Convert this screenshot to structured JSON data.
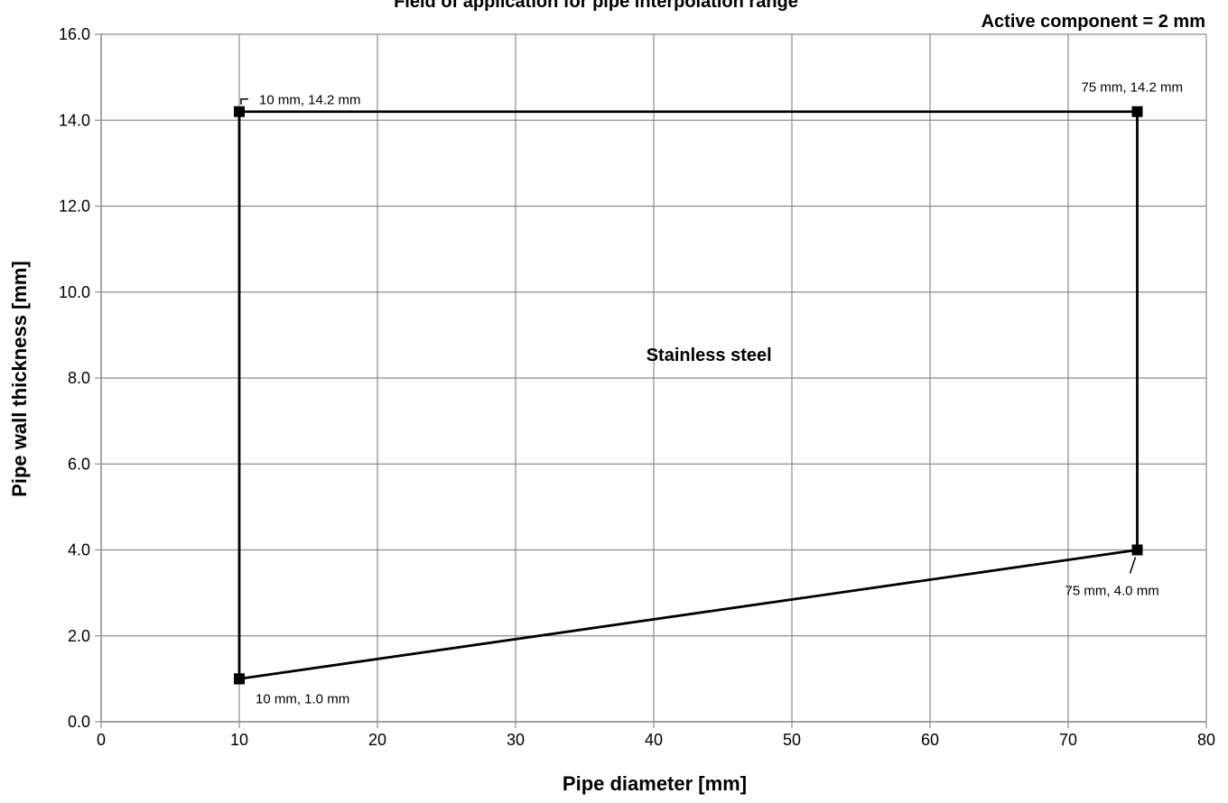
{
  "chart_data": {
    "type": "line",
    "title": "Field of application for pipe interpolation range",
    "subtitle": "Active component = 2 mm",
    "xlabel": "Pipe diameter [mm]",
    "ylabel": "Pipe wall thickness [mm]",
    "xlim": [
      0,
      80
    ],
    "ylim": [
      0,
      16
    ],
    "x_ticks": [
      "0",
      "10",
      "20",
      "30",
      "40",
      "50",
      "60",
      "70",
      "80"
    ],
    "y_ticks": [
      "0.0",
      "2.0",
      "4.0",
      "6.0",
      "8.0",
      "10.0",
      "12.0",
      "14.0",
      "16.0"
    ],
    "grid": true,
    "series": [
      {
        "points": [
          {
            "x": 10,
            "y": 1.0
          },
          {
            "x": 10,
            "y": 14.2
          },
          {
            "x": 75,
            "y": 14.2
          },
          {
            "x": 75,
            "y": 4.0
          },
          {
            "x": 10,
            "y": 1.0
          }
        ],
        "color": "#000000"
      }
    ],
    "point_labels": [
      {
        "x": 10,
        "y": 14.2,
        "text": "10 mm, 14.2 mm"
      },
      {
        "x": 75,
        "y": 14.2,
        "text": "75 mm, 14.2 mm"
      },
      {
        "x": 75,
        "y": 4.0,
        "text": "75 mm, 4.0 mm"
      },
      {
        "x": 10,
        "y": 1.0,
        "text": "10 mm, 1.0 mm"
      }
    ],
    "annotations": [
      {
        "x": 44,
        "y": 8.4,
        "text": "Stainless steel"
      }
    ]
  }
}
